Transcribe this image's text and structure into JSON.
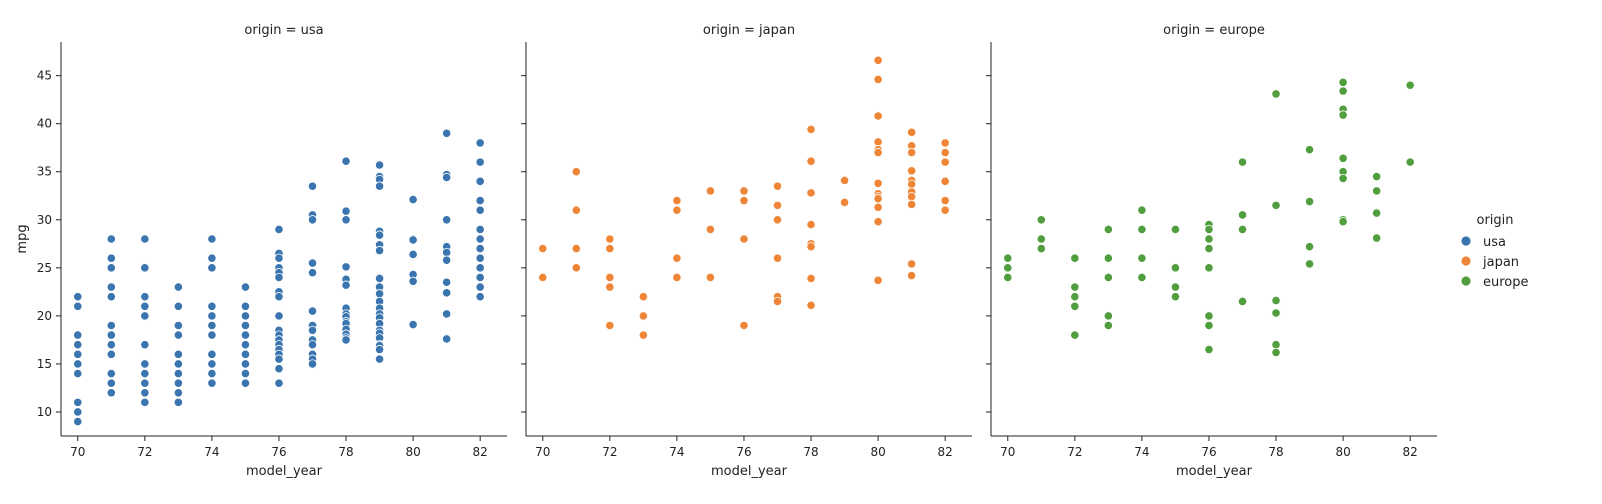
{
  "chart_data": {
    "type": "scatter",
    "x_column": "model_year",
    "y_column": "mpg",
    "ylabel": "mpg",
    "xlim": [
      69.5,
      82.8
    ],
    "ylim": [
      7.5,
      48.5
    ],
    "xticks": [
      70,
      72,
      74,
      76,
      78,
      80,
      82
    ],
    "yticks": [
      10,
      15,
      20,
      25,
      30,
      35,
      40,
      45
    ],
    "shared_y": true,
    "grid": false,
    "legend": {
      "title": "origin",
      "placement": "right",
      "entries": [
        {
          "label": "usa",
          "color": "#3a75af"
        },
        {
          "label": "japan",
          "color": "#ef8637"
        },
        {
          "label": "europe",
          "color": "#519e3e"
        }
      ]
    },
    "panels": [
      {
        "title": "origin = usa",
        "xlabel": "model_year",
        "color": "#3a75af",
        "points": [
          [
            70,
            22
          ],
          [
            70,
            21
          ],
          [
            70,
            18
          ],
          [
            70,
            17
          ],
          [
            70,
            16
          ],
          [
            70,
            15
          ],
          [
            70,
            14
          ],
          [
            70,
            11
          ],
          [
            70,
            10
          ],
          [
            70,
            9
          ],
          [
            71,
            28
          ],
          [
            71,
            26
          ],
          [
            71,
            25
          ],
          [
            71,
            23
          ],
          [
            71,
            22
          ],
          [
            71,
            19
          ],
          [
            71,
            18
          ],
          [
            71,
            17
          ],
          [
            71,
            16
          ],
          [
            71,
            14
          ],
          [
            71,
            13
          ],
          [
            71,
            12
          ],
          [
            72,
            28
          ],
          [
            72,
            25
          ],
          [
            72,
            22
          ],
          [
            72,
            21
          ],
          [
            72,
            20
          ],
          [
            72,
            17
          ],
          [
            72,
            15
          ],
          [
            72,
            14
          ],
          [
            72,
            13
          ],
          [
            72,
            12
          ],
          [
            72,
            11
          ],
          [
            73,
            23
          ],
          [
            73,
            21
          ],
          [
            73,
            19
          ],
          [
            73,
            18
          ],
          [
            73,
            16
          ],
          [
            73,
            15
          ],
          [
            73,
            14
          ],
          [
            73,
            13
          ],
          [
            73,
            12
          ],
          [
            73,
            11
          ],
          [
            74,
            28
          ],
          [
            74,
            26
          ],
          [
            74,
            25
          ],
          [
            74,
            21
          ],
          [
            74,
            20
          ],
          [
            74,
            19
          ],
          [
            74,
            18
          ],
          [
            74,
            16
          ],
          [
            74,
            15
          ],
          [
            74,
            14
          ],
          [
            74,
            13
          ],
          [
            75,
            23
          ],
          [
            75,
            21
          ],
          [
            75,
            20
          ],
          [
            75,
            19
          ],
          [
            75,
            18
          ],
          [
            75,
            17
          ],
          [
            75,
            16
          ],
          [
            75,
            15
          ],
          [
            75,
            14
          ],
          [
            75,
            13
          ],
          [
            76,
            29
          ],
          [
            76,
            26.5
          ],
          [
            76,
            26
          ],
          [
            76,
            25
          ],
          [
            76,
            24.5
          ],
          [
            76,
            24
          ],
          [
            76,
            22.5
          ],
          [
            76,
            22
          ],
          [
            76,
            20
          ],
          [
            76,
            18.5
          ],
          [
            76,
            18
          ],
          [
            76,
            17.5
          ],
          [
            76,
            17
          ],
          [
            76,
            16.5
          ],
          [
            76,
            16
          ],
          [
            76,
            15.5
          ],
          [
            76,
            14.5
          ],
          [
            76,
            13
          ],
          [
            77,
            33.5
          ],
          [
            77,
            30.5
          ],
          [
            77,
            30
          ],
          [
            77,
            25.5
          ],
          [
            77,
            24.5
          ],
          [
            77,
            20.5
          ],
          [
            77,
            19
          ],
          [
            77,
            18.5
          ],
          [
            77,
            17.5
          ],
          [
            77,
            17
          ],
          [
            77,
            16
          ],
          [
            77,
            15.5
          ],
          [
            77,
            15
          ],
          [
            78,
            36.1
          ],
          [
            78,
            30.9
          ],
          [
            78,
            30
          ],
          [
            78,
            25.1
          ],
          [
            78,
            23.8
          ],
          [
            78,
            23.2
          ],
          [
            78,
            20.8
          ],
          [
            78,
            20.2
          ],
          [
            78,
            19.9
          ],
          [
            78,
            19.4
          ],
          [
            78,
            19.2
          ],
          [
            78,
            18.6
          ],
          [
            78,
            18.1
          ],
          [
            78,
            17.7
          ],
          [
            78,
            17.5
          ],
          [
            79,
            35.7
          ],
          [
            79,
            34.5
          ],
          [
            79,
            34.2
          ],
          [
            79,
            33.5
          ],
          [
            79,
            28.8
          ],
          [
            79,
            28.4
          ],
          [
            79,
            27.4
          ],
          [
            79,
            26.8
          ],
          [
            79,
            23.9
          ],
          [
            79,
            23
          ],
          [
            79,
            22.3
          ],
          [
            79,
            21.5
          ],
          [
            79,
            20.8
          ],
          [
            79,
            20.2
          ],
          [
            79,
            19.8
          ],
          [
            79,
            19.2
          ],
          [
            79,
            18.5
          ],
          [
            79,
            18.2
          ],
          [
            79,
            17.7
          ],
          [
            79,
            17
          ],
          [
            79,
            16.9
          ],
          [
            79,
            16.5
          ],
          [
            79,
            15.5
          ],
          [
            80,
            32.1
          ],
          [
            80,
            28
          ],
          [
            80,
            27.9
          ],
          [
            80,
            26.4
          ],
          [
            80,
            24.3
          ],
          [
            80,
            23.6
          ],
          [
            80,
            19.1
          ],
          [
            81,
            39
          ],
          [
            81,
            34.7
          ],
          [
            81,
            34.4
          ],
          [
            81,
            30
          ],
          [
            81,
            27.2
          ],
          [
            81,
            26.6
          ],
          [
            81,
            25.8
          ],
          [
            81,
            23.5
          ],
          [
            81,
            22.4
          ],
          [
            81,
            20.2
          ],
          [
            81,
            17.6
          ],
          [
            82,
            38
          ],
          [
            82,
            36
          ],
          [
            82,
            34
          ],
          [
            82,
            32
          ],
          [
            82,
            31
          ],
          [
            82,
            29
          ],
          [
            82,
            28
          ],
          [
            82,
            27
          ],
          [
            82,
            26
          ],
          [
            82,
            25
          ],
          [
            82,
            24
          ],
          [
            82,
            23
          ],
          [
            82,
            22
          ]
        ]
      },
      {
        "title": "origin = japan",
        "xlabel": "model_year",
        "color": "#ef8637",
        "points": [
          [
            70,
            27
          ],
          [
            70,
            24
          ],
          [
            71,
            35
          ],
          [
            71,
            31
          ],
          [
            71,
            27
          ],
          [
            71,
            25
          ],
          [
            72,
            28
          ],
          [
            72,
            27
          ],
          [
            72,
            24
          ],
          [
            72,
            23
          ],
          [
            72,
            19
          ],
          [
            73,
            22
          ],
          [
            73,
            20
          ],
          [
            73,
            18
          ],
          [
            74,
            32
          ],
          [
            74,
            31
          ],
          [
            74,
            26
          ],
          [
            74,
            24
          ],
          [
            75,
            33
          ],
          [
            75,
            29
          ],
          [
            75,
            24
          ],
          [
            76,
            33
          ],
          [
            76,
            32
          ],
          [
            76,
            28
          ],
          [
            76,
            19
          ],
          [
            77,
            33.5
          ],
          [
            77,
            31.5
          ],
          [
            77,
            30
          ],
          [
            77,
            26
          ],
          [
            77,
            22
          ],
          [
            77,
            21.5
          ],
          [
            78,
            39.4
          ],
          [
            78,
            36.1
          ],
          [
            78,
            32.8
          ],
          [
            78,
            29.5
          ],
          [
            78,
            27.5
          ],
          [
            78,
            27.2
          ],
          [
            78,
            23.9
          ],
          [
            78,
            21.1
          ],
          [
            79,
            34.1
          ],
          [
            79,
            31.8
          ],
          [
            80,
            46.6
          ],
          [
            80,
            44.6
          ],
          [
            80,
            40.8
          ],
          [
            80,
            38.1
          ],
          [
            80,
            37.3
          ],
          [
            80,
            37
          ],
          [
            80,
            33.8
          ],
          [
            80,
            32.7
          ],
          [
            80,
            32.4
          ],
          [
            80,
            32.2
          ],
          [
            80,
            31.3
          ],
          [
            80,
            29.8
          ],
          [
            80,
            23.7
          ],
          [
            81,
            39.1
          ],
          [
            81,
            37.7
          ],
          [
            81,
            37
          ],
          [
            81,
            35.1
          ],
          [
            81,
            34.1
          ],
          [
            81,
            33.7
          ],
          [
            81,
            32.9
          ],
          [
            81,
            32.4
          ],
          [
            81,
            31.6
          ],
          [
            81,
            25.4
          ],
          [
            81,
            24.2
          ],
          [
            82,
            38
          ],
          [
            82,
            37
          ],
          [
            82,
            36
          ],
          [
            82,
            34
          ],
          [
            82,
            32
          ],
          [
            82,
            31
          ]
        ]
      },
      {
        "title": "origin = europe",
        "xlabel": "model_year",
        "color": "#519e3e",
        "points": [
          [
            70,
            26
          ],
          [
            70,
            25
          ],
          [
            70,
            24
          ],
          [
            71,
            30
          ],
          [
            71,
            28
          ],
          [
            71,
            27
          ],
          [
            72,
            26
          ],
          [
            72,
            23
          ],
          [
            72,
            22
          ],
          [
            72,
            21
          ],
          [
            72,
            18
          ],
          [
            73,
            29
          ],
          [
            73,
            26
          ],
          [
            73,
            24
          ],
          [
            73,
            20
          ],
          [
            73,
            19
          ],
          [
            74,
            31
          ],
          [
            74,
            29
          ],
          [
            74,
            26
          ],
          [
            74,
            24
          ],
          [
            75,
            29
          ],
          [
            75,
            25
          ],
          [
            75,
            23
          ],
          [
            75,
            22
          ],
          [
            76,
            29.5
          ],
          [
            76,
            29
          ],
          [
            76,
            28
          ],
          [
            76,
            27
          ],
          [
            76,
            25
          ],
          [
            76,
            20
          ],
          [
            76,
            19
          ],
          [
            76,
            16.5
          ],
          [
            77,
            36
          ],
          [
            77,
            30.5
          ],
          [
            77,
            29
          ],
          [
            77,
            21.5
          ],
          [
            78,
            43.1
          ],
          [
            78,
            31.5
          ],
          [
            78,
            21.6
          ],
          [
            78,
            20.3
          ],
          [
            78,
            17
          ],
          [
            78,
            16.2
          ],
          [
            79,
            37.3
          ],
          [
            79,
            31.9
          ],
          [
            79,
            27.2
          ],
          [
            79,
            25.4
          ],
          [
            80,
            44.3
          ],
          [
            80,
            43.4
          ],
          [
            80,
            41.5
          ],
          [
            80,
            40.9
          ],
          [
            80,
            36.4
          ],
          [
            80,
            35
          ],
          [
            80,
            34.3
          ],
          [
            80,
            30
          ],
          [
            80,
            29.8
          ],
          [
            81,
            34.5
          ],
          [
            81,
            33
          ],
          [
            81,
            30.7
          ],
          [
            81,
            28.1
          ],
          [
            82,
            44
          ],
          [
            82,
            36
          ]
        ]
      }
    ]
  }
}
